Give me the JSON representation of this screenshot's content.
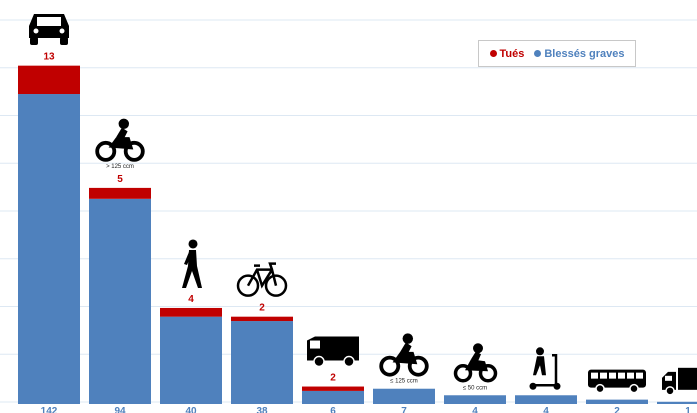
{
  "chart_data": {
    "type": "bar",
    "stacked": true,
    "grid": true,
    "legend_position": "top-right",
    "categories": [
      {
        "icon": "car-icon",
        "sublabel": ""
      },
      {
        "icon": "motorcycle-icon",
        "sublabel": "> 125 ccm"
      },
      {
        "icon": "pedestrian-icon",
        "sublabel": ""
      },
      {
        "icon": "bicycle-icon",
        "sublabel": ""
      },
      {
        "icon": "van-icon",
        "sublabel": ""
      },
      {
        "icon": "motorcycle-icon",
        "sublabel": "≤ 125 ccm"
      },
      {
        "icon": "moped-icon",
        "sublabel": "≤ 50 ccm"
      },
      {
        "icon": "e-scooter-icon",
        "sublabel": ""
      },
      {
        "icon": "bus-icon",
        "sublabel": ""
      },
      {
        "icon": "truck-icon",
        "sublabel": ""
      }
    ],
    "series": [
      {
        "name": "Blessés graves",
        "color": "#4f81bd",
        "values": [
          142,
          94,
          40,
          38,
          6,
          7,
          4,
          4,
          2,
          1
        ]
      },
      {
        "name": "Tués",
        "color": "#c00000",
        "values": [
          13,
          5,
          4,
          2,
          2,
          null,
          null,
          null,
          null,
          null
        ]
      }
    ],
    "ylim": [
      0,
      175
    ]
  },
  "legend": {
    "killed_label": "Tués",
    "injured_label": "Blessés graves",
    "killed_color": "#c00000",
    "injured_color": "#4f81bd"
  }
}
